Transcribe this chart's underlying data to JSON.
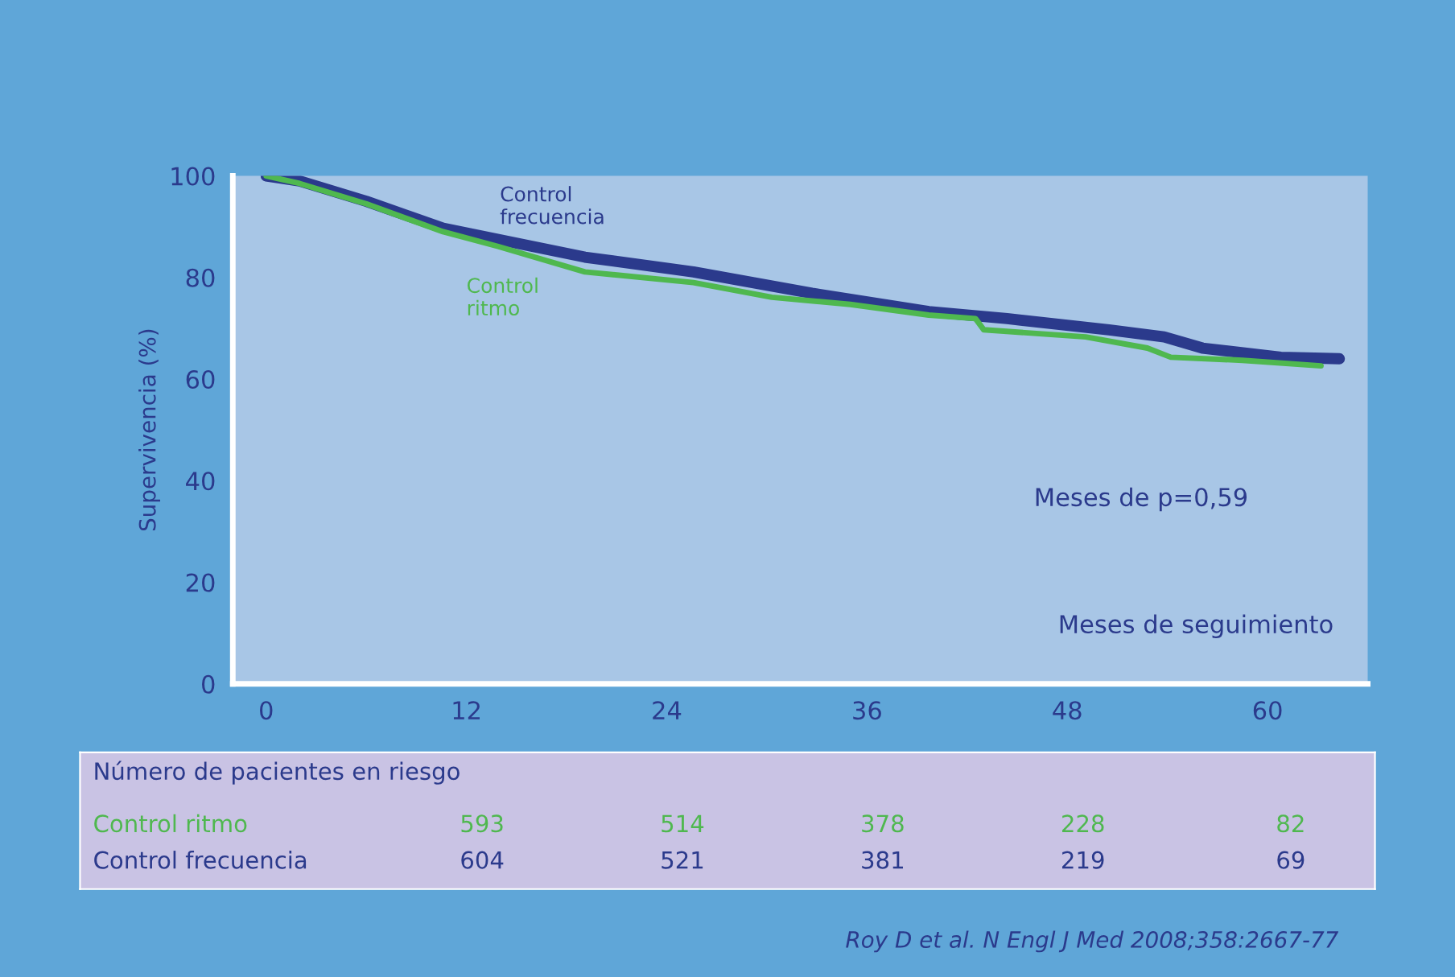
{
  "chart_data": {
    "type": "line",
    "xlabel": "Meses de seguimiento",
    "ylabel": "Supervivencia (%)",
    "xlim": [
      -2,
      66
    ],
    "ylim": [
      0,
      100
    ],
    "xticks": [
      0,
      12,
      24,
      36,
      48,
      60
    ],
    "yticks": [
      0,
      20,
      40,
      60,
      80,
      100
    ],
    "grid": false,
    "legend": false,
    "line_style": "solid",
    "series": [
      {
        "name": "Control\nfrecuencia",
        "color": "#2b3a8c",
        "x": [
          0,
          2,
          6,
          10.6,
          19.1,
          25.6,
          32.7,
          39.7,
          44.4,
          50.5,
          53.8,
          56.1,
          60.8,
          64.3
        ],
        "values": [
          100,
          99,
          95,
          89.7,
          84,
          81.1,
          76.9,
          73.3,
          71.9,
          69.7,
          68.3,
          66.1,
          64.3,
          64
        ]
      },
      {
        "name": "Control\nritmo",
        "color": "#4fb84f",
        "x": [
          0,
          2,
          6,
          10.6,
          13.9,
          19.1,
          25.6,
          30.3,
          35,
          39.7,
          42.5,
          43,
          49.1,
          52.8,
          54.2,
          58.5,
          63.2
        ],
        "values": [
          100,
          98.5,
          94.5,
          89,
          86.1,
          81.1,
          79,
          76.1,
          74.7,
          72.6,
          71.9,
          69.7,
          68.3,
          66.1,
          64.3,
          63.7,
          62.6
        ]
      }
    ],
    "annotations": [
      "Número de pacientes en riesgo",
      "Control ritmo",
      "593",
      "514",
      "378",
      "228",
      "82",
      "Control frecuencia",
      "604",
      "521",
      "381",
      "219",
      "69",
      "Meses de p=0,59",
      "Roy D et al. N Engl J Med 2008;358:2667-77"
    ]
  }
}
